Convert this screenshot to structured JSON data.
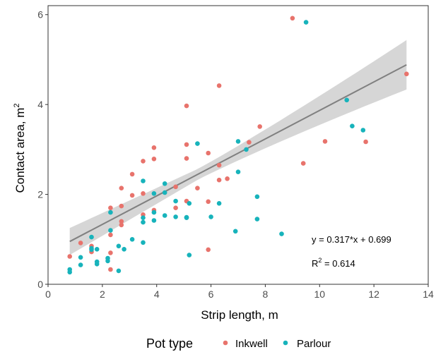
{
  "chart_data": {
    "type": "scatter",
    "xlabel": "Strip length, m",
    "ylabel_main": "Contact area, m",
    "ylabel_sup": "2",
    "xlim": [
      0,
      14
    ],
    "ylim": [
      0,
      6.2
    ],
    "x_ticks": [
      0,
      2,
      4,
      6,
      8,
      10,
      12,
      14
    ],
    "y_ticks": [
      0,
      2,
      4,
      6
    ],
    "grid": false,
    "legend": {
      "title": "Pot type",
      "placement": "bottom",
      "entries": [
        {
          "label": "Inkwell",
          "color": "#e8736c"
        },
        {
          "label": "Parlour",
          "color": "#17b3bb"
        }
      ]
    },
    "fit": {
      "equation": "y = 0.317*x + 0.699",
      "r2_prefix": "R",
      "r2_sup": "2",
      "r2_value": " = 0.614",
      "slope": 0.317,
      "intercept": 0.699,
      "x_range": [
        0.8,
        13.2
      ],
      "band_halfwidth_left": 0.3,
      "band_halfwidth_mid": 0.12,
      "band_halfwidth_right": 0.55,
      "line_color": "#808080",
      "band_color": "#cccccc"
    },
    "series": [
      {
        "name": "Inkwell",
        "color": "#e8736c",
        "points": [
          [
            0.8,
            0.62
          ],
          [
            1.2,
            0.92
          ],
          [
            1.6,
            0.85
          ],
          [
            1.6,
            0.72
          ],
          [
            2.3,
            1.7
          ],
          [
            2.3,
            1.1
          ],
          [
            2.3,
            0.7
          ],
          [
            2.3,
            0.33
          ],
          [
            2.7,
            2.14
          ],
          [
            2.7,
            1.74
          ],
          [
            2.7,
            1.4
          ],
          [
            2.7,
            1.32
          ],
          [
            3.1,
            2.45
          ],
          [
            3.1,
            1.98
          ],
          [
            3.5,
            2.74
          ],
          [
            3.5,
            2.02
          ],
          [
            3.5,
            1.55
          ],
          [
            3.9,
            3.04
          ],
          [
            3.9,
            2.79
          ],
          [
            3.9,
            1.65
          ],
          [
            4.7,
            2.17
          ],
          [
            4.7,
            1.7
          ],
          [
            5.1,
            3.97
          ],
          [
            5.1,
            3.11
          ],
          [
            5.1,
            2.8
          ],
          [
            5.1,
            1.85
          ],
          [
            5.5,
            2.14
          ],
          [
            5.9,
            2.92
          ],
          [
            5.9,
            1.84
          ],
          [
            5.9,
            0.77
          ],
          [
            6.3,
            4.42
          ],
          [
            6.3,
            2.65
          ],
          [
            6.3,
            2.32
          ],
          [
            6.6,
            2.35
          ],
          [
            7.4,
            3.16
          ],
          [
            7.8,
            3.51
          ],
          [
            9.0,
            5.92
          ],
          [
            9.4,
            2.69
          ],
          [
            10.2,
            3.18
          ],
          [
            11.7,
            3.17
          ],
          [
            13.2,
            4.68
          ]
        ]
      },
      {
        "name": "Parlour",
        "color": "#17b3bb",
        "points": [
          [
            0.8,
            0.33
          ],
          [
            0.8,
            0.27
          ],
          [
            1.2,
            0.6
          ],
          [
            1.2,
            0.43
          ],
          [
            1.6,
            1.05
          ],
          [
            1.6,
            0.8
          ],
          [
            1.6,
            0.77
          ],
          [
            1.8,
            0.78
          ],
          [
            1.8,
            0.5
          ],
          [
            1.8,
            0.45
          ],
          [
            2.2,
            0.58
          ],
          [
            2.2,
            0.52
          ],
          [
            2.3,
            1.6
          ],
          [
            2.3,
            1.2
          ],
          [
            2.6,
            0.85
          ],
          [
            2.6,
            0.3
          ],
          [
            2.8,
            0.78
          ],
          [
            3.1,
            1.0
          ],
          [
            3.5,
            2.3
          ],
          [
            3.5,
            1.48
          ],
          [
            3.5,
            1.38
          ],
          [
            3.5,
            0.93
          ],
          [
            3.9,
            2.02
          ],
          [
            3.9,
            1.6
          ],
          [
            3.9,
            1.42
          ],
          [
            4.3,
            2.24
          ],
          [
            4.3,
            2.04
          ],
          [
            4.3,
            1.53
          ],
          [
            4.7,
            1.85
          ],
          [
            4.7,
            1.5
          ],
          [
            5.1,
            1.49
          ],
          [
            5.1,
            1.48
          ],
          [
            5.2,
            1.8
          ],
          [
            5.2,
            0.65
          ],
          [
            5.5,
            3.13
          ],
          [
            6.0,
            1.5
          ],
          [
            6.3,
            1.8
          ],
          [
            6.9,
            1.18
          ],
          [
            7.0,
            3.18
          ],
          [
            7.0,
            2.5
          ],
          [
            7.3,
            3.0
          ],
          [
            7.7,
            1.95
          ],
          [
            7.7,
            1.45
          ],
          [
            8.6,
            1.12
          ],
          [
            9.5,
            5.83
          ],
          [
            11.0,
            4.1
          ],
          [
            11.2,
            3.52
          ],
          [
            11.6,
            3.43
          ]
        ]
      }
    ]
  }
}
